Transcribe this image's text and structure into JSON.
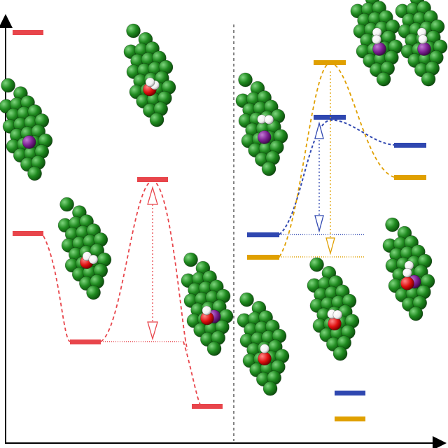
{
  "colors": {
    "red": "#e8454b",
    "blue": "#2f47b0",
    "orange": "#e0a000",
    "cluster_green": "#1f8a1f",
    "dopant_purple": "#7a1f8f",
    "oxygen_red": "#e01010",
    "hydrogen_white": "#ffffff",
    "axis": "#000000"
  },
  "legend": {
    "blue_label": "",
    "orange_label": ""
  },
  "panels": {
    "left": {
      "levels": [
        "reference",
        "initial",
        "intermediate",
        "transition-state",
        "final"
      ],
      "barrier_arrow": "double-headed"
    },
    "right": {
      "series": [
        "blue-pathway",
        "orange-pathway"
      ],
      "barrier_arrows": "double-headed"
    }
  },
  "icons": {
    "cluster": "metal-cluster-icon",
    "adsorbate": "water-molecule-icon"
  }
}
